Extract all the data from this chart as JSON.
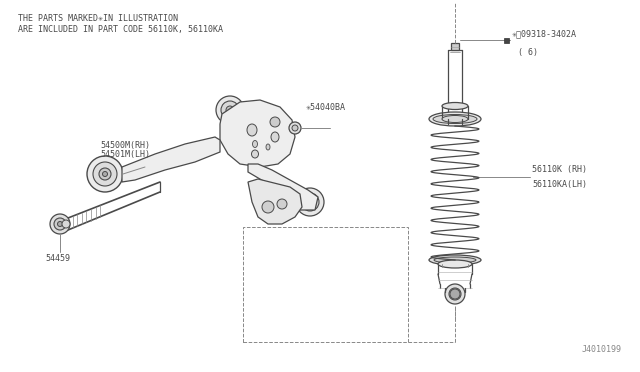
{
  "bg_color": "#ffffff",
  "fig_width": 6.4,
  "fig_height": 3.72,
  "dpi": 100,
  "header_line1": "THE PARTS MARKED✳IN ILLUSTRATION",
  "header_line2": "ARE INCLUDED IN PART CODE 56110K, 56110KA",
  "labels": {
    "54500M_RH": "54500M(RH)",
    "54501M_LH": "54501M(LH)",
    "54040BA": "✳54040BA",
    "54459": "54459",
    "56110K_RH": "56110K (RH)",
    "56110KA_LH": "56110KA(LH)",
    "09318_3402A_line1": "✳Ⓣ09318-3402A",
    "09318_3402A_line2": "( 6)",
    "J4010199": "J4010199"
  },
  "text_color": "#4a4a4a",
  "line_color": "#4a4a4a",
  "dashed_color": "#888888"
}
